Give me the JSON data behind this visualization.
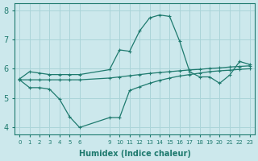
{
  "xlabel": "Humidex (Indice chaleur)",
  "bg_color": "#cce8ec",
  "grid_color": "#aad4d8",
  "line_color": "#1e7a6e",
  "line1_x": [
    0,
    1,
    2,
    3,
    4,
    5,
    6,
    9,
    10,
    11,
    12,
    13,
    14,
    15,
    16,
    17,
    18,
    19,
    20,
    21,
    22,
    23
  ],
  "line1_y": [
    5.65,
    5.9,
    5.85,
    5.8,
    5.8,
    5.8,
    5.8,
    5.97,
    6.65,
    6.6,
    7.3,
    7.75,
    7.85,
    7.8,
    6.95,
    5.9,
    5.72,
    5.72,
    5.5,
    5.78,
    6.25,
    6.15
  ],
  "line2_x": [
    0,
    1,
    2,
    3,
    4,
    5,
    6,
    9,
    10,
    11,
    12,
    13,
    14,
    15,
    16,
    17,
    18,
    19,
    20,
    21,
    22,
    23
  ],
  "line2_y": [
    5.62,
    5.62,
    5.62,
    5.62,
    5.62,
    5.62,
    5.62,
    5.68,
    5.72,
    5.76,
    5.8,
    5.84,
    5.87,
    5.9,
    5.93,
    5.96,
    5.98,
    6.01,
    6.03,
    6.06,
    6.08,
    6.1
  ],
  "line3_x": [
    0,
    1,
    2,
    3,
    4,
    5,
    6,
    9,
    10,
    11,
    12,
    13,
    14,
    15,
    16,
    17,
    18,
    19,
    20,
    21,
    22,
    23
  ],
  "line3_y": [
    5.62,
    5.35,
    5.35,
    5.3,
    4.95,
    4.35,
    3.98,
    4.32,
    4.32,
    5.25,
    5.38,
    5.5,
    5.6,
    5.68,
    5.75,
    5.8,
    5.85,
    5.9,
    5.93,
    5.95,
    5.98,
    6.0
  ],
  "ylim": [
    3.75,
    8.25
  ],
  "xlim": [
    -0.5,
    23.5
  ],
  "yticks": [
    4,
    5,
    6,
    7,
    8
  ],
  "xtick_positions": [
    0,
    1,
    2,
    3,
    4,
    5,
    6,
    9,
    10,
    11,
    12,
    13,
    14,
    15,
    16,
    17,
    18,
    19,
    20,
    21,
    22,
    23
  ],
  "xtick_labels": [
    "0",
    "1",
    "2",
    "3",
    "4",
    "5",
    "6",
    "9",
    "10",
    "11",
    "12",
    "13",
    "14",
    "15",
    "16",
    "17",
    "18",
    "19",
    "20",
    "21",
    "22",
    "23"
  ]
}
